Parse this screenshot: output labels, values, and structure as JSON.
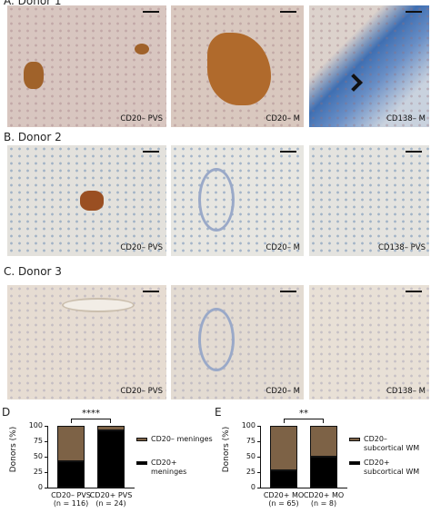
{
  "panels": [
    {
      "title": "A. Donor 1",
      "images": [
        {
          "label": "CD20– PVS"
        },
        {
          "label": "CD20– M"
        },
        {
          "label": "CD138– M"
        }
      ]
    },
    {
      "title": "B. Donor 2",
      "images": [
        {
          "label": "CD20– PVS"
        },
        {
          "label": "CD20– M"
        },
        {
          "label": "CD138– PVS"
        }
      ]
    },
    {
      "title": "C. Donor 3",
      "images": [
        {
          "label": "CD20– PVS"
        },
        {
          "label": "CD20– M"
        },
        {
          "label": "CD138– M"
        }
      ]
    }
  ],
  "chart_data": [
    {
      "type": "bar",
      "stacked": true,
      "panel_label": "D",
      "ylabel": "Donors (%)",
      "categories": [
        "CD20– PVS (n = 116)",
        "CD20+ PVS (n = 24)"
      ],
      "series": [
        {
          "name": "CD20+ meninges",
          "color": "#000000",
          "values": [
            42,
            92
          ]
        },
        {
          "name": "CD20– meninges",
          "color": "#7d6246",
          "values": [
            58,
            8
          ]
        }
      ],
      "ylim": [
        0,
        100
      ],
      "yticks": [
        0,
        25,
        50,
        75,
        100
      ],
      "annotation": "****"
    },
    {
      "type": "bar",
      "stacked": true,
      "panel_label": "E",
      "ylabel": "Donors (%)",
      "categories": [
        "CD20+ MO (n = 65)",
        "CD20+ MO (n = 8)"
      ],
      "series": [
        {
          "name": "CD20+ subcortical WM",
          "color": "#000000",
          "values": [
            28,
            50
          ]
        },
        {
          "name": "CD20– subcortical WM",
          "color": "#7d6246",
          "values": [
            72,
            50
          ]
        }
      ],
      "ylim": [
        0,
        100
      ],
      "yticks": [
        0,
        25,
        50,
        75,
        100
      ],
      "annotation": "**"
    }
  ]
}
